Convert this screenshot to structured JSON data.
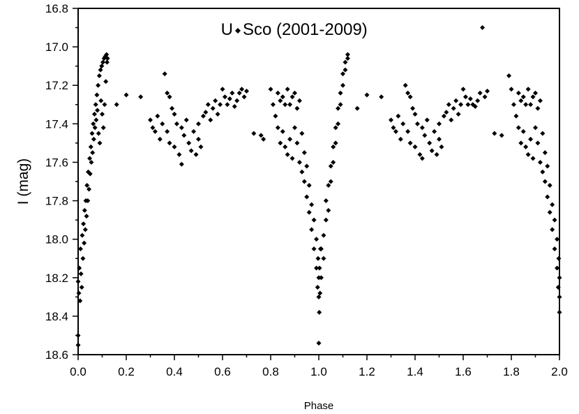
{
  "chart_data": {
    "type": "scatter",
    "xlabel": "Phase",
    "ylabel": "I (mag)",
    "xlim": [
      0.0,
      2.0
    ],
    "ylim": [
      18.6,
      16.8
    ],
    "y_inverted": true,
    "grid": false,
    "x_ticks": [
      "0.0",
      "0.2",
      "0.4",
      "0.6",
      "0.8",
      "1.0",
      "1.2",
      "1.4",
      "1.6",
      "1.8",
      "2.0"
    ],
    "y_ticks": [
      "16.8",
      "17.0",
      "17.2",
      "17.4",
      "17.6",
      "17.8",
      "18.0",
      "18.2",
      "18.4",
      "18.6"
    ],
    "legend_placement": "top-center",
    "marker": "diamond",
    "series": [
      {
        "name": "U Sco (2001-2009)",
        "color": "#000000",
        "points": [
          [
            0.0,
            18.22
          ],
          [
            0.003,
            18.28
          ],
          [
            0.005,
            18.15
          ],
          [
            0.008,
            18.32
          ],
          [
            0.01,
            18.05
          ],
          [
            0.012,
            18.18
          ],
          [
            0.015,
            18.25
          ],
          [
            0.017,
            17.98
          ],
          [
            0.02,
            18.1
          ],
          [
            0.022,
            17.92
          ],
          [
            0.025,
            18.02
          ],
          [
            0.027,
            17.85
          ],
          [
            0.03,
            17.95
          ],
          [
            0.032,
            17.8
          ],
          [
            0.035,
            17.88
          ],
          [
            0.037,
            17.72
          ],
          [
            0.04,
            17.8
          ],
          [
            0.042,
            17.65
          ],
          [
            0.045,
            17.74
          ],
          [
            0.048,
            17.58
          ],
          [
            0.05,
            17.66
          ],
          [
            0.053,
            17.52
          ],
          [
            0.055,
            17.6
          ],
          [
            0.058,
            17.45
          ],
          [
            0.06,
            17.55
          ],
          [
            0.063,
            17.4
          ],
          [
            0.065,
            17.48
          ],
          [
            0.068,
            17.35
          ],
          [
            0.07,
            17.42
          ],
          [
            0.073,
            17.3
          ],
          [
            0.075,
            17.38
          ],
          [
            0.078,
            17.25
          ],
          [
            0.08,
            17.33
          ],
          [
            0.083,
            17.2
          ],
          [
            0.085,
            17.45
          ],
          [
            0.088,
            17.15
          ],
          [
            0.09,
            17.5
          ],
          [
            0.093,
            17.12
          ],
          [
            0.095,
            17.28
          ],
          [
            0.098,
            17.1
          ],
          [
            0.1,
            17.35
          ],
          [
            0.103,
            17.08
          ],
          [
            0.105,
            17.42
          ],
          [
            0.108,
            17.06
          ],
          [
            0.11,
            17.3
          ],
          [
            0.113,
            17.05
          ],
          [
            0.115,
            17.18
          ],
          [
            0.118,
            17.04
          ],
          [
            0.12,
            17.08
          ],
          [
            0.122,
            17.06
          ],
          [
            0.0,
            18.55
          ],
          [
            0.0,
            18.5
          ],
          [
            0.16,
            17.3
          ],
          [
            0.2,
            17.25
          ],
          [
            0.26,
            17.26
          ],
          [
            0.3,
            17.38
          ],
          [
            0.31,
            17.42
          ],
          [
            0.32,
            17.44
          ],
          [
            0.33,
            17.36
          ],
          [
            0.34,
            17.48
          ],
          [
            0.35,
            17.4
          ],
          [
            0.36,
            17.14
          ],
          [
            0.37,
            17.24
          ],
          [
            0.37,
            17.44
          ],
          [
            0.38,
            17.26
          ],
          [
            0.38,
            17.5
          ],
          [
            0.39,
            17.32
          ],
          [
            0.4,
            17.35
          ],
          [
            0.4,
            17.52
          ],
          [
            0.41,
            17.4
          ],
          [
            0.42,
            17.56
          ],
          [
            0.43,
            17.61
          ],
          [
            0.43,
            17.42
          ],
          [
            0.44,
            17.46
          ],
          [
            0.45,
            17.38
          ],
          [
            0.46,
            17.5
          ],
          [
            0.47,
            17.54
          ],
          [
            0.48,
            17.44
          ],
          [
            0.49,
            17.56
          ],
          [
            0.5,
            17.48
          ],
          [
            0.5,
            17.4
          ],
          [
            0.51,
            17.52
          ],
          [
            0.52,
            17.36
          ],
          [
            0.53,
            17.34
          ],
          [
            0.54,
            17.3
          ],
          [
            0.55,
            17.38
          ],
          [
            0.56,
            17.32
          ],
          [
            0.57,
            17.28
          ],
          [
            0.58,
            17.35
          ],
          [
            0.59,
            17.3
          ],
          [
            0.6,
            17.22
          ],
          [
            0.61,
            17.26
          ],
          [
            0.62,
            17.3
          ],
          [
            0.63,
            17.27
          ],
          [
            0.64,
            17.24
          ],
          [
            0.65,
            17.31
          ],
          [
            0.66,
            17.28
          ],
          [
            0.67,
            17.24
          ],
          [
            0.68,
            17.22
          ],
          [
            0.69,
            17.26
          ],
          [
            0.7,
            17.23
          ],
          [
            0.73,
            17.45
          ],
          [
            0.76,
            17.46
          ],
          [
            0.77,
            17.48
          ],
          [
            0.8,
            17.22
          ],
          [
            0.81,
            17.3
          ],
          [
            0.82,
            17.36
          ],
          [
            0.83,
            17.42
          ],
          [
            0.83,
            17.24
          ],
          [
            0.84,
            17.5
          ],
          [
            0.84,
            17.28
          ],
          [
            0.85,
            17.44
          ],
          [
            0.85,
            17.26
          ],
          [
            0.86,
            17.52
          ],
          [
            0.86,
            17.3
          ],
          [
            0.87,
            17.56
          ],
          [
            0.87,
            17.22
          ],
          [
            0.88,
            17.48
          ],
          [
            0.88,
            17.3
          ],
          [
            0.89,
            17.58
          ],
          [
            0.89,
            17.26
          ],
          [
            0.9,
            17.42
          ],
          [
            0.9,
            17.24
          ],
          [
            0.91,
            17.5
          ],
          [
            0.91,
            17.32
          ],
          [
            0.92,
            17.6
          ],
          [
            0.92,
            17.28
          ],
          [
            0.93,
            17.65
          ],
          [
            0.93,
            17.45
          ],
          [
            0.94,
            17.7
          ],
          [
            0.94,
            17.55
          ],
          [
            0.95,
            17.78
          ],
          [
            0.95,
            17.62
          ],
          [
            0.96,
            17.86
          ],
          [
            0.96,
            17.72
          ],
          [
            0.97,
            17.95
          ],
          [
            0.97,
            17.82
          ],
          [
            0.98,
            18.05
          ],
          [
            0.98,
            17.9
          ],
          [
            0.99,
            18.15
          ],
          [
            0.99,
            18.0
          ],
          [
            0.995,
            18.25
          ],
          [
            0.997,
            18.1
          ],
          [
            1.0,
            18.3
          ],
          [
            1.0,
            18.2
          ],
          [
            1.002,
            18.38
          ],
          [
            1.003,
            18.15
          ],
          [
            1.005,
            18.28
          ],
          [
            1.007,
            18.05
          ],
          [
            1.0,
            18.54
          ],
          [
            1.01,
            18.2
          ],
          [
            1.01,
            18.05
          ],
          [
            1.02,
            17.98
          ],
          [
            1.02,
            18.1
          ],
          [
            1.03,
            17.9
          ],
          [
            1.03,
            17.8
          ],
          [
            1.04,
            17.85
          ],
          [
            1.04,
            17.72
          ],
          [
            1.05,
            17.7
          ],
          [
            1.05,
            17.62
          ],
          [
            1.06,
            17.6
          ],
          [
            1.06,
            17.52
          ],
          [
            1.07,
            17.5
          ],
          [
            1.07,
            17.42
          ],
          [
            1.08,
            17.4
          ],
          [
            1.08,
            17.32
          ],
          [
            1.09,
            17.3
          ],
          [
            1.09,
            17.24
          ],
          [
            1.1,
            17.2
          ],
          [
            1.1,
            17.14
          ],
          [
            1.11,
            17.12
          ],
          [
            1.11,
            17.08
          ],
          [
            1.12,
            17.06
          ],
          [
            1.12,
            17.04
          ],
          [
            1.16,
            17.32
          ],
          [
            1.2,
            17.25
          ],
          [
            1.26,
            17.26
          ],
          [
            1.3,
            17.38
          ],
          [
            1.31,
            17.42
          ],
          [
            1.32,
            17.44
          ],
          [
            1.33,
            17.36
          ],
          [
            1.34,
            17.48
          ],
          [
            1.35,
            17.4
          ],
          [
            1.36,
            17.2
          ],
          [
            1.37,
            17.24
          ],
          [
            1.37,
            17.44
          ],
          [
            1.38,
            17.26
          ],
          [
            1.38,
            17.5
          ],
          [
            1.39,
            17.32
          ],
          [
            1.4,
            17.35
          ],
          [
            1.4,
            17.52
          ],
          [
            1.41,
            17.4
          ],
          [
            1.42,
            17.56
          ],
          [
            1.43,
            17.58
          ],
          [
            1.43,
            17.42
          ],
          [
            1.44,
            17.46
          ],
          [
            1.45,
            17.38
          ],
          [
            1.46,
            17.5
          ],
          [
            1.47,
            17.54
          ],
          [
            1.48,
            17.44
          ],
          [
            1.49,
            17.56
          ],
          [
            1.5,
            17.48
          ],
          [
            1.5,
            17.4
          ],
          [
            1.51,
            17.52
          ],
          [
            1.52,
            17.36
          ],
          [
            1.53,
            17.34
          ],
          [
            1.54,
            17.3
          ],
          [
            1.55,
            17.38
          ],
          [
            1.56,
            17.32
          ],
          [
            1.57,
            17.28
          ],
          [
            1.58,
            17.35
          ],
          [
            1.59,
            17.3
          ],
          [
            1.6,
            17.22
          ],
          [
            1.61,
            17.26
          ],
          [
            1.62,
            17.3
          ],
          [
            1.63,
            17.27
          ],
          [
            1.64,
            17.3
          ],
          [
            1.65,
            17.31
          ],
          [
            1.66,
            17.28
          ],
          [
            1.67,
            17.24
          ],
          [
            1.68,
            16.9
          ],
          [
            1.69,
            17.26
          ],
          [
            1.7,
            17.23
          ],
          [
            1.73,
            17.45
          ],
          [
            1.76,
            17.46
          ],
          [
            1.79,
            17.15
          ],
          [
            1.8,
            17.22
          ],
          [
            1.81,
            17.3
          ],
          [
            1.82,
            17.36
          ],
          [
            1.83,
            17.42
          ],
          [
            1.83,
            17.24
          ],
          [
            1.84,
            17.5
          ],
          [
            1.84,
            17.28
          ],
          [
            1.85,
            17.44
          ],
          [
            1.85,
            17.26
          ],
          [
            1.86,
            17.52
          ],
          [
            1.86,
            17.3
          ],
          [
            1.87,
            17.56
          ],
          [
            1.87,
            17.22
          ],
          [
            1.88,
            17.48
          ],
          [
            1.88,
            17.3
          ],
          [
            1.89,
            17.58
          ],
          [
            1.89,
            17.26
          ],
          [
            1.9,
            17.42
          ],
          [
            1.9,
            17.24
          ],
          [
            1.91,
            17.5
          ],
          [
            1.91,
            17.32
          ],
          [
            1.92,
            17.6
          ],
          [
            1.92,
            17.28
          ],
          [
            1.93,
            17.65
          ],
          [
            1.93,
            17.45
          ],
          [
            1.94,
            17.7
          ],
          [
            1.94,
            17.55
          ],
          [
            1.95,
            17.78
          ],
          [
            1.95,
            17.62
          ],
          [
            1.96,
            17.86
          ],
          [
            1.96,
            17.72
          ],
          [
            1.97,
            17.95
          ],
          [
            1.97,
            17.82
          ],
          [
            1.98,
            18.05
          ],
          [
            1.98,
            17.9
          ],
          [
            1.99,
            18.15
          ],
          [
            1.99,
            18.0
          ],
          [
            1.995,
            18.25
          ],
          [
            1.997,
            18.1
          ],
          [
            2.0,
            18.3
          ],
          [
            2.0,
            18.2
          ],
          [
            2.0,
            18.38
          ]
        ]
      }
    ]
  }
}
